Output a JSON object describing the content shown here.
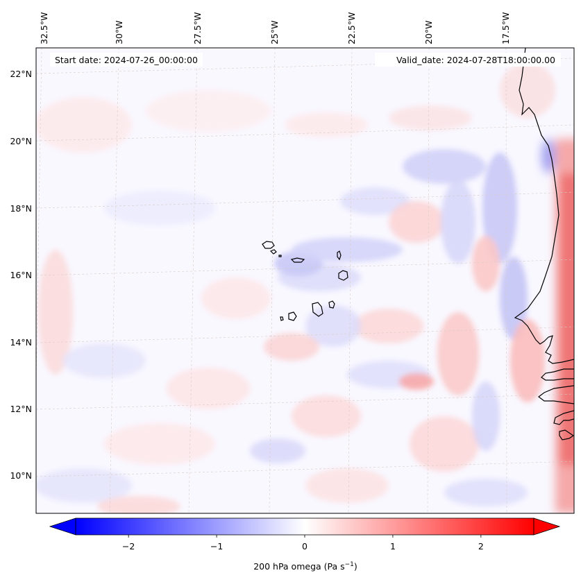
{
  "header": {
    "start_date": "Start date: 2024-07-26_00:00:00",
    "valid_date": "Valid_date: 2024-07-28T18:00:00.00"
  },
  "map": {
    "projection": "Lambert conformal (West Africa / Cape Verde region)",
    "longitude_labels": [
      "32.5°W",
      "30°W",
      "27.5°W",
      "25°W",
      "22.5°W",
      "20°W",
      "17.5°W"
    ],
    "latitude_labels": [
      "22°N",
      "20°N",
      "18°N",
      "16°N",
      "14°N",
      "12°N",
      "10°N"
    ],
    "field": "200 hPa omega",
    "islands": "Cape Verde archipelago",
    "coastline": "West African coast (Mauritania, Senegal, Gambia, Guinea-Bissau)"
  },
  "colorbar": {
    "ticks": [
      "−2",
      "−1",
      "0",
      "1",
      "2"
    ],
    "tick_values": [
      -2,
      -1,
      0,
      1,
      2
    ],
    "range": [
      -2.6,
      2.6
    ],
    "extend": "both",
    "cmap": "bwr",
    "label_prefix": "200 hPa omega (Pa s",
    "label_exp": "−1",
    "label_suffix": ")"
  },
  "colors": {
    "negative": "#0000ff",
    "positive": "#ff0000",
    "neutral": "#ffffff",
    "coastline": "#000000",
    "gridline": "#c8c0b8"
  }
}
